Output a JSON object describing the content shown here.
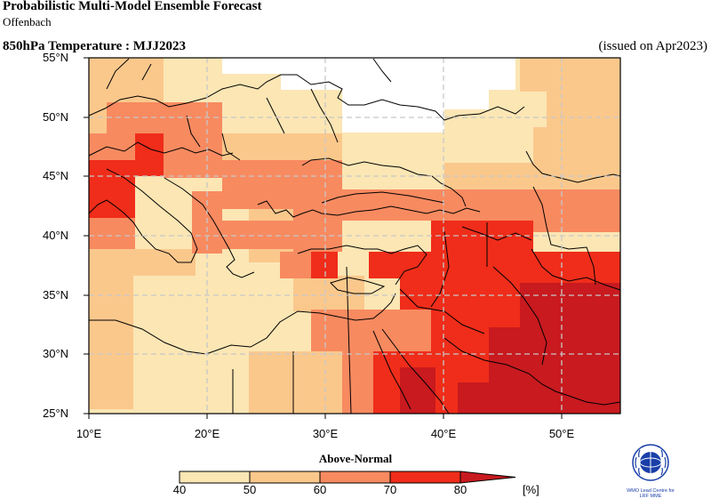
{
  "header": {
    "title": "Probabilistic Multi-Model Ensemble Forecast",
    "subtitle": "Offenbach",
    "variable": "850hPa Temperature : MJJ2023",
    "issued": "(issued on Apr2023)"
  },
  "map": {
    "lat_labels": [
      "55°N",
      "50°N",
      "45°N",
      "40°N",
      "35°N",
      "30°N",
      "25°N"
    ],
    "lon_labels": [
      "10°E",
      "20°E",
      "30°E",
      "40°E",
      "50°E"
    ],
    "extent": {
      "lon": [
        10,
        55
      ],
      "lat": [
        25,
        55
      ]
    }
  },
  "legend": {
    "title": "Above-Normal",
    "ticks": [
      "40",
      "50",
      "60",
      "70",
      "80"
    ],
    "unit": "[%]",
    "colors": [
      "#fbe6b4",
      "#fbc88c",
      "#f88a60",
      "#ef2d1a",
      "#c81a1f"
    ]
  },
  "logo": {
    "icon": "wmo-globe-icon",
    "text": "WMO Lead Centre for\nLRF MME"
  }
}
